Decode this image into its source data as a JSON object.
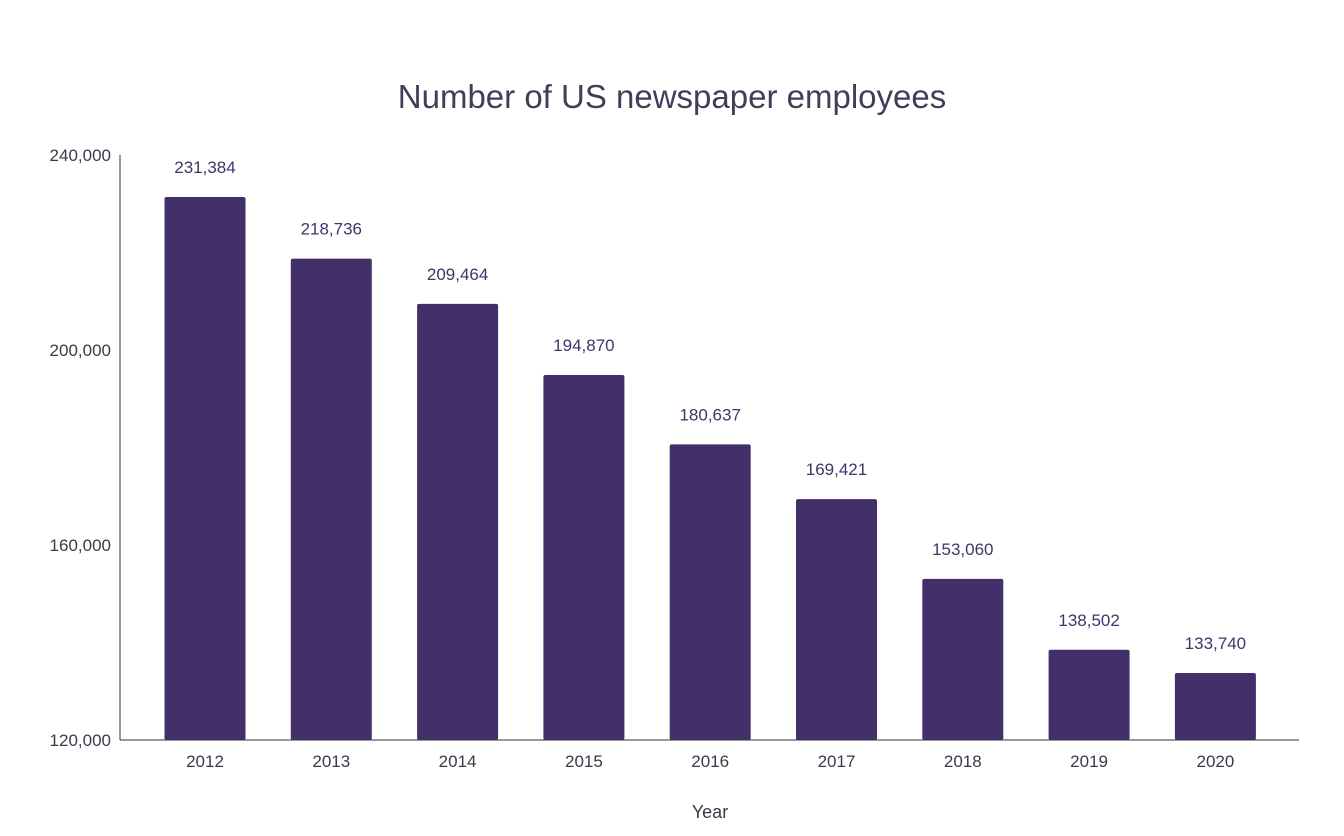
{
  "chart_data": {
    "type": "bar",
    "title": "Number of US newspaper employees",
    "xlabel": "Year",
    "ylabel": "",
    "categories": [
      "2012",
      "2013",
      "2014",
      "2015",
      "2016",
      "2017",
      "2018",
      "2019",
      "2020"
    ],
    "values": [
      231384,
      218736,
      209464,
      194870,
      180637,
      169421,
      153060,
      138502,
      133740
    ],
    "data_labels": [
      "231,384",
      "218,736",
      "209,464",
      "194,870",
      "180,637",
      "169,421",
      "153,060",
      "138,502",
      "133,740"
    ],
    "ylim": [
      120000,
      240000
    ],
    "yticks": [
      120000,
      160000,
      200000,
      240000
    ],
    "ytick_labels": [
      "120,000",
      "160,000",
      "200,000",
      "240,000"
    ],
    "grid": false,
    "legend": "none",
    "colors": {
      "bar": "#43306b",
      "axis": "#333333"
    }
  }
}
